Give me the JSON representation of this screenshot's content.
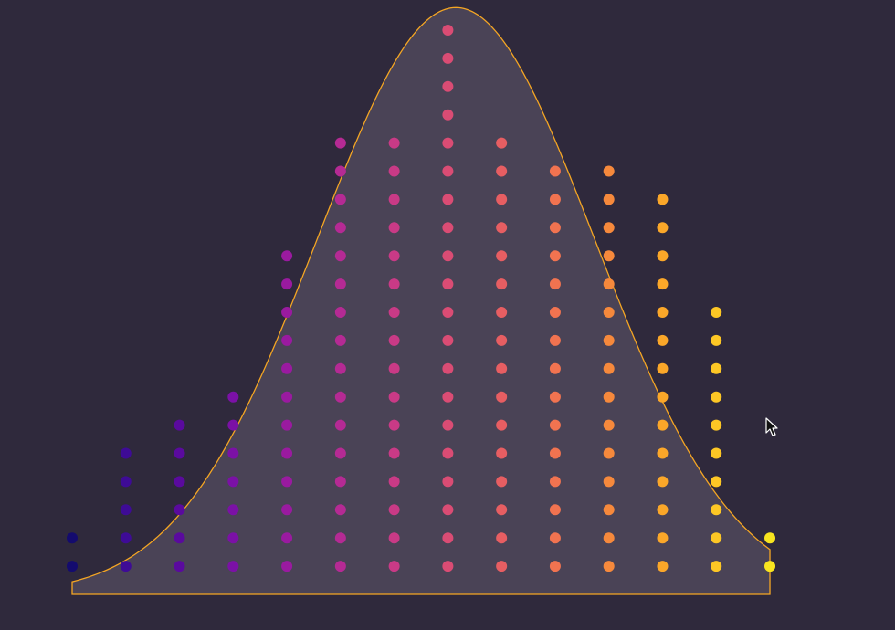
{
  "chart_data": {
    "type": "scatter",
    "title": "",
    "xlabel": "",
    "ylabel": "",
    "x": [
      0,
      1,
      2,
      3,
      4,
      5,
      6,
      7,
      8,
      9,
      10,
      11,
      12,
      13
    ],
    "counts": [
      2,
      5,
      6,
      7,
      12,
      16,
      16,
      20,
      16,
      15,
      15,
      14,
      10,
      2
    ],
    "point_colors": [
      "#140b6e",
      "#3e0b96",
      "#5a0a9e",
      "#7b11a6",
      "#9a1aa0",
      "#b52a94",
      "#c93a86",
      "#da4c74",
      "#e75e62",
      "#f17350",
      "#f6893c",
      "#fba729",
      "#fdc725",
      "#f8e41f"
    ],
    "density_curve": {
      "stroke": "#f5a623",
      "fill": "#4a4356",
      "peak_x": 7.15,
      "peak_level": 20.8,
      "spread": 2.58
    },
    "grid": false,
    "legend": "none"
  },
  "cursor": {
    "icon": "arrow-cursor-icon"
  }
}
